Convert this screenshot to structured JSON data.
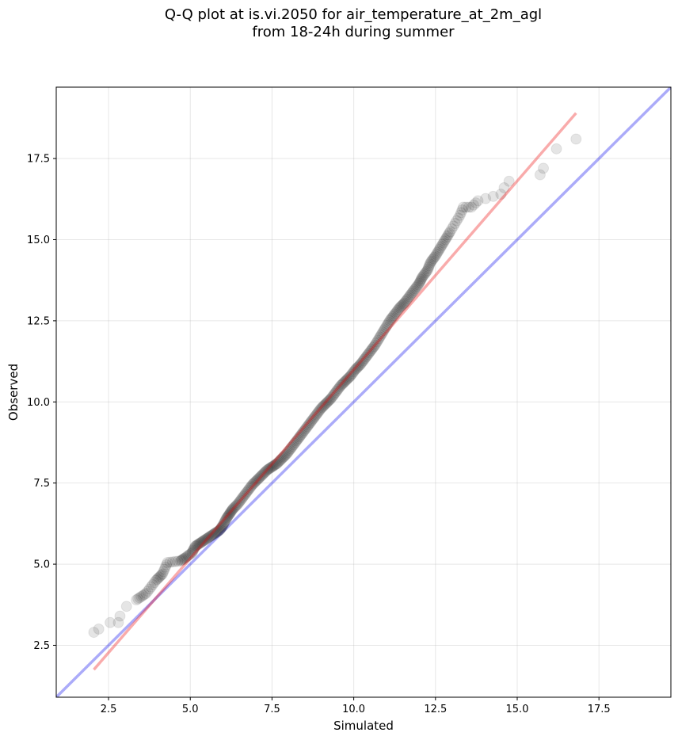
{
  "chart_data": {
    "type": "scatter",
    "title_line1": "Q-Q plot at is.vi.2050 for air_temperature_at_2m_agl",
    "title_line2": "from 18-24h during summer",
    "xlabel": "Simulated",
    "ylabel": "Observed",
    "xlim": [
      0.9,
      19.7
    ],
    "ylim": [
      0.9,
      19.7
    ],
    "xticks": [
      "2.5",
      "5.0",
      "7.5",
      "10.0",
      "12.5",
      "15.0",
      "17.5"
    ],
    "yticks": [
      "2.5",
      "5.0",
      "7.5",
      "10.0",
      "12.5",
      "15.0",
      "17.5"
    ],
    "grid": true,
    "point_color": "#000000",
    "identity_line": {
      "color": "#0000ee",
      "from": [
        0.9,
        0.9
      ],
      "to": [
        19.7,
        19.7
      ]
    },
    "fit_line": {
      "color": "#ee0000",
      "from": [
        2.05,
        1.75
      ],
      "to": [
        16.8,
        18.9
      ]
    },
    "quantiles": [
      [
        2.05,
        2.9
      ],
      [
        2.2,
        3.0
      ],
      [
        2.55,
        3.2
      ],
      [
        2.8,
        3.2
      ],
      [
        2.85,
        3.4
      ],
      [
        3.05,
        3.7
      ],
      [
        3.35,
        3.9
      ],
      [
        3.5,
        4.0
      ],
      [
        3.65,
        4.1
      ],
      [
        3.8,
        4.3
      ],
      [
        3.95,
        4.5
      ],
      [
        4.05,
        4.6
      ],
      [
        4.15,
        4.7
      ],
      [
        4.3,
        5.05
      ],
      [
        4.7,
        5.1
      ],
      [
        4.85,
        5.2
      ],
      [
        5.05,
        5.35
      ],
      [
        5.15,
        5.55
      ],
      [
        5.3,
        5.65
      ],
      [
        5.45,
        5.75
      ],
      [
        5.6,
        5.85
      ],
      [
        5.75,
        5.95
      ],
      [
        5.9,
        6.05
      ],
      [
        6.0,
        6.2
      ],
      [
        6.1,
        6.4
      ],
      [
        6.2,
        6.55
      ],
      [
        6.3,
        6.7
      ],
      [
        6.45,
        6.85
      ],
      [
        6.6,
        7.05
      ],
      [
        6.75,
        7.25
      ],
      [
        6.9,
        7.45
      ],
      [
        7.05,
        7.6
      ],
      [
        7.2,
        7.75
      ],
      [
        7.35,
        7.9
      ],
      [
        7.5,
        8.0
      ],
      [
        7.65,
        8.1
      ],
      [
        7.8,
        8.25
      ],
      [
        7.95,
        8.4
      ],
      [
        8.1,
        8.6
      ],
      [
        8.25,
        8.8
      ],
      [
        8.4,
        9.0
      ],
      [
        8.55,
        9.2
      ],
      [
        8.7,
        9.4
      ],
      [
        8.85,
        9.6
      ],
      [
        9.0,
        9.8
      ],
      [
        9.15,
        9.95
      ],
      [
        9.3,
        10.1
      ],
      [
        9.45,
        10.3
      ],
      [
        9.6,
        10.5
      ],
      [
        9.75,
        10.65
      ],
      [
        9.9,
        10.8
      ],
      [
        10.05,
        11.0
      ],
      [
        10.2,
        11.15
      ],
      [
        10.35,
        11.35
      ],
      [
        10.5,
        11.55
      ],
      [
        10.65,
        11.75
      ],
      [
        10.8,
        12.0
      ],
      [
        10.95,
        12.25
      ],
      [
        11.1,
        12.5
      ],
      [
        11.25,
        12.7
      ],
      [
        11.4,
        12.9
      ],
      [
        11.55,
        13.05
      ],
      [
        11.7,
        13.25
      ],
      [
        11.85,
        13.45
      ],
      [
        12.0,
        13.65
      ],
      [
        12.1,
        13.85
      ],
      [
        12.25,
        14.05
      ],
      [
        12.35,
        14.3
      ],
      [
        12.5,
        14.5
      ],
      [
        12.65,
        14.75
      ],
      [
        12.8,
        15.0
      ],
      [
        12.95,
        15.25
      ],
      [
        13.1,
        15.5
      ],
      [
        13.25,
        15.75
      ],
      [
        13.35,
        16.0
      ],
      [
        13.6,
        16.0
      ],
      [
        13.8,
        16.2
      ],
      [
        14.5,
        16.4
      ],
      [
        14.6,
        16.6
      ],
      [
        14.75,
        16.8
      ],
      [
        15.7,
        17.0
      ],
      [
        15.8,
        17.2
      ],
      [
        16.2,
        17.8
      ],
      [
        16.8,
        18.1
      ]
    ]
  }
}
